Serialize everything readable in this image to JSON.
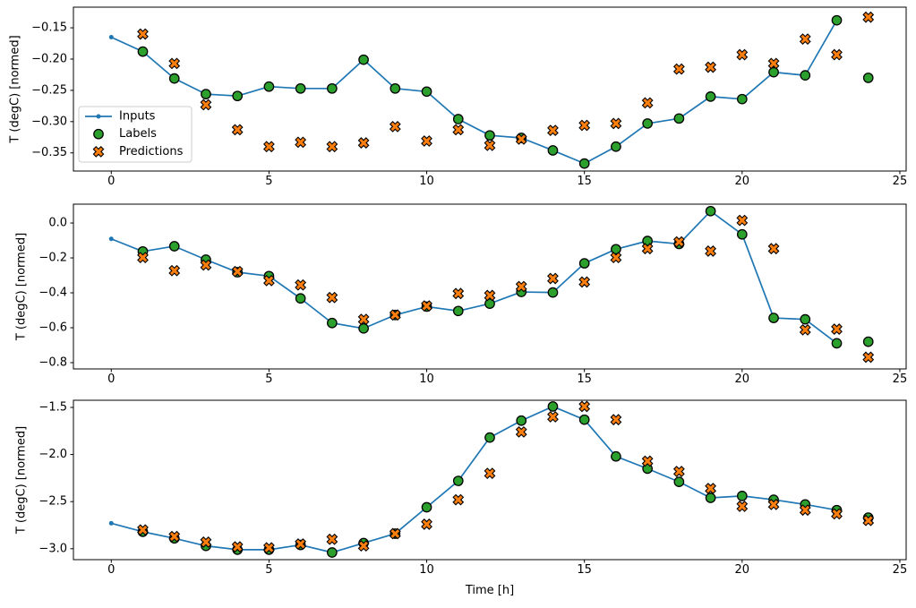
{
  "figure": {
    "background": "#ffffff",
    "text_color": "#000000",
    "spine_color": "#000000",
    "legend_border_color": "#cccccc",
    "legend_background": "#ffffff"
  },
  "chart_data": [
    {
      "type": "line",
      "title": "",
      "xlabel": "",
      "ylabel": "T (degC) [normed]",
      "grid": false,
      "xlim": [
        -1.2,
        25.2
      ],
      "ylim": [
        -0.379,
        -0.117
      ],
      "xticks": [
        0,
        5,
        10,
        15,
        20,
        25
      ],
      "xticklabels": [
        "0",
        "5",
        "10",
        "15",
        "20",
        "25"
      ],
      "yticks": [
        -0.15,
        -0.2,
        -0.25,
        -0.3,
        -0.35
      ],
      "yticklabels": [
        "−0.15",
        "−0.20",
        "−0.25",
        "−0.30",
        "−0.35"
      ],
      "legend": {
        "visible": true,
        "location": "center left",
        "entries": [
          "Inputs",
          "Labels",
          "Predictions"
        ]
      },
      "series": [
        {
          "name": "Inputs",
          "type": "line",
          "marker": "point",
          "color": "#1f77b4",
          "x": [
            0,
            1,
            2,
            3,
            4,
            5,
            6,
            7,
            8,
            9,
            10,
            11,
            12,
            13,
            14,
            15,
            16,
            17,
            18,
            19,
            20,
            21,
            22,
            23
          ],
          "y": [
            -0.165,
            -0.188,
            -0.231,
            -0.256,
            -0.259,
            -0.244,
            -0.247,
            -0.247,
            -0.201,
            -0.247,
            -0.252,
            -0.296,
            -0.322,
            -0.326,
            -0.346,
            -0.367,
            -0.34,
            -0.303,
            -0.295,
            -0.26,
            -0.264,
            -0.221,
            -0.226,
            -0.138
          ]
        },
        {
          "name": "Labels",
          "type": "scatter",
          "marker": "circle",
          "color": "#2ca02c",
          "edgecolor": "#000000",
          "x": [
            1,
            2,
            3,
            4,
            5,
            6,
            7,
            8,
            9,
            10,
            11,
            12,
            13,
            14,
            15,
            16,
            17,
            18,
            19,
            20,
            21,
            22,
            23,
            24
          ],
          "y": [
            -0.188,
            -0.231,
            -0.256,
            -0.259,
            -0.244,
            -0.247,
            -0.247,
            -0.201,
            -0.247,
            -0.252,
            -0.296,
            -0.322,
            -0.326,
            -0.346,
            -0.367,
            -0.34,
            -0.303,
            -0.295,
            -0.26,
            -0.264,
            -0.221,
            -0.226,
            -0.138,
            -0.23
          ]
        },
        {
          "name": "Predictions",
          "type": "scatter",
          "marker": "X",
          "color": "#ff7f0e",
          "edgecolor": "#000000",
          "x": [
            1,
            2,
            3,
            4,
            5,
            6,
            7,
            8,
            9,
            10,
            11,
            12,
            13,
            14,
            15,
            16,
            17,
            18,
            19,
            20,
            21,
            22,
            23,
            24
          ],
          "y": [
            -0.16,
            -0.207,
            -0.273,
            -0.313,
            -0.34,
            -0.333,
            -0.34,
            -0.334,
            -0.308,
            -0.331,
            -0.313,
            -0.338,
            -0.328,
            -0.314,
            -0.306,
            -0.303,
            -0.27,
            -0.216,
            -0.213,
            -0.193,
            -0.207,
            -0.168,
            -0.193,
            -0.133
          ]
        }
      ]
    },
    {
      "type": "line",
      "title": "",
      "xlabel": "",
      "ylabel": "T (degC) [normed]",
      "grid": false,
      "xlim": [
        -1.2,
        25.2
      ],
      "ylim": [
        -0.836,
        0.108
      ],
      "xticks": [
        0,
        5,
        10,
        15,
        20,
        25
      ],
      "xticklabels": [
        "0",
        "5",
        "10",
        "15",
        "20",
        "25"
      ],
      "yticks": [
        0.0,
        -0.2,
        -0.4,
        -0.6,
        -0.8
      ],
      "yticklabels": [
        "0.0",
        "−0.2",
        "−0.4",
        "−0.6",
        "−0.8"
      ],
      "legend": {
        "visible": false,
        "entries": []
      },
      "series": [
        {
          "name": "Inputs",
          "type": "line",
          "marker": "point",
          "color": "#1f77b4",
          "x": [
            0,
            1,
            2,
            3,
            4,
            5,
            6,
            7,
            8,
            9,
            10,
            11,
            12,
            13,
            14,
            15,
            16,
            17,
            18,
            19,
            20,
            21,
            22,
            23
          ],
          "y": [
            -0.091,
            -0.163,
            -0.133,
            -0.21,
            -0.282,
            -0.304,
            -0.432,
            -0.573,
            -0.604,
            -0.527,
            -0.479,
            -0.504,
            -0.462,
            -0.395,
            -0.398,
            -0.231,
            -0.15,
            -0.103,
            -0.12,
            0.068,
            -0.065,
            -0.544,
            -0.552,
            -0.689
          ]
        },
        {
          "name": "Labels",
          "type": "scatter",
          "marker": "circle",
          "color": "#2ca02c",
          "edgecolor": "#000000",
          "x": [
            1,
            2,
            3,
            4,
            5,
            6,
            7,
            8,
            9,
            10,
            11,
            12,
            13,
            14,
            15,
            16,
            17,
            18,
            19,
            20,
            21,
            22,
            23,
            24
          ],
          "y": [
            -0.163,
            -0.133,
            -0.21,
            -0.282,
            -0.304,
            -0.432,
            -0.573,
            -0.604,
            -0.527,
            -0.479,
            -0.504,
            -0.462,
            -0.395,
            -0.398,
            -0.231,
            -0.15,
            -0.103,
            -0.12,
            0.068,
            -0.065,
            -0.544,
            -0.552,
            -0.689,
            -0.68
          ]
        },
        {
          "name": "Predictions",
          "type": "scatter",
          "marker": "X",
          "color": "#ff7f0e",
          "edgecolor": "#000000",
          "x": [
            1,
            2,
            3,
            4,
            5,
            6,
            7,
            8,
            9,
            10,
            11,
            12,
            13,
            14,
            15,
            16,
            17,
            18,
            19,
            20,
            21,
            22,
            23,
            24
          ],
          "y": [
            -0.198,
            -0.273,
            -0.241,
            -0.278,
            -0.33,
            -0.355,
            -0.427,
            -0.552,
            -0.527,
            -0.475,
            -0.404,
            -0.415,
            -0.364,
            -0.318,
            -0.338,
            -0.198,
            -0.147,
            -0.108,
            -0.161,
            0.015,
            -0.147,
            -0.612,
            -0.608,
            -0.769
          ]
        }
      ]
    },
    {
      "type": "line",
      "title": "",
      "xlabel": "Time [h]",
      "ylabel": "T (degC) [normed]",
      "grid": false,
      "xlim": [
        -1.2,
        25.2
      ],
      "ylim": [
        -3.116,
        -1.424
      ],
      "xticks": [
        0,
        5,
        10,
        15,
        20,
        25
      ],
      "xticklabels": [
        "0",
        "5",
        "10",
        "15",
        "20",
        "25"
      ],
      "yticks": [
        -1.5,
        -2.0,
        -2.5,
        -3.0
      ],
      "yticklabels": [
        "−1.5",
        "−2.0",
        "−2.5",
        "−3.0"
      ],
      "legend": {
        "visible": false,
        "entries": []
      },
      "series": [
        {
          "name": "Inputs",
          "type": "line",
          "marker": "point",
          "color": "#1f77b4",
          "x": [
            0,
            1,
            2,
            3,
            4,
            5,
            6,
            7,
            8,
            9,
            10,
            11,
            12,
            13,
            14,
            15,
            16,
            17,
            18,
            19,
            20,
            21,
            22,
            23
          ],
          "y": [
            -2.73,
            -2.82,
            -2.89,
            -2.97,
            -3.01,
            -3.01,
            -2.96,
            -3.04,
            -2.94,
            -2.84,
            -2.56,
            -2.28,
            -1.82,
            -1.64,
            -1.49,
            -1.63,
            -2.02,
            -2.15,
            -2.29,
            -2.46,
            -2.44,
            -2.48,
            -2.53,
            -2.59
          ]
        },
        {
          "name": "Labels",
          "type": "scatter",
          "marker": "circle",
          "color": "#2ca02c",
          "edgecolor": "#000000",
          "x": [
            1,
            2,
            3,
            4,
            5,
            6,
            7,
            8,
            9,
            10,
            11,
            12,
            13,
            14,
            15,
            16,
            17,
            18,
            19,
            20,
            21,
            22,
            23,
            24
          ],
          "y": [
            -2.82,
            -2.89,
            -2.97,
            -3.01,
            -3.01,
            -2.96,
            -3.04,
            -2.94,
            -2.84,
            -2.56,
            -2.28,
            -1.82,
            -1.64,
            -1.49,
            -1.63,
            -2.02,
            -2.15,
            -2.29,
            -2.46,
            -2.44,
            -2.48,
            -2.53,
            -2.59,
            -2.67
          ]
        },
        {
          "name": "Predictions",
          "type": "scatter",
          "marker": "X",
          "color": "#ff7f0e",
          "edgecolor": "#000000",
          "x": [
            1,
            2,
            3,
            4,
            5,
            6,
            7,
            8,
            9,
            10,
            11,
            12,
            13,
            14,
            15,
            16,
            17,
            18,
            19,
            20,
            21,
            22,
            23,
            24
          ],
          "y": [
            -2.8,
            -2.87,
            -2.93,
            -2.98,
            -2.99,
            -2.95,
            -2.9,
            -2.97,
            -2.84,
            -2.74,
            -2.48,
            -2.2,
            -1.76,
            -1.6,
            -1.49,
            -1.63,
            -2.07,
            -2.18,
            -2.36,
            -2.55,
            -2.53,
            -2.59,
            -2.63,
            -2.7
          ]
        }
      ]
    }
  ]
}
